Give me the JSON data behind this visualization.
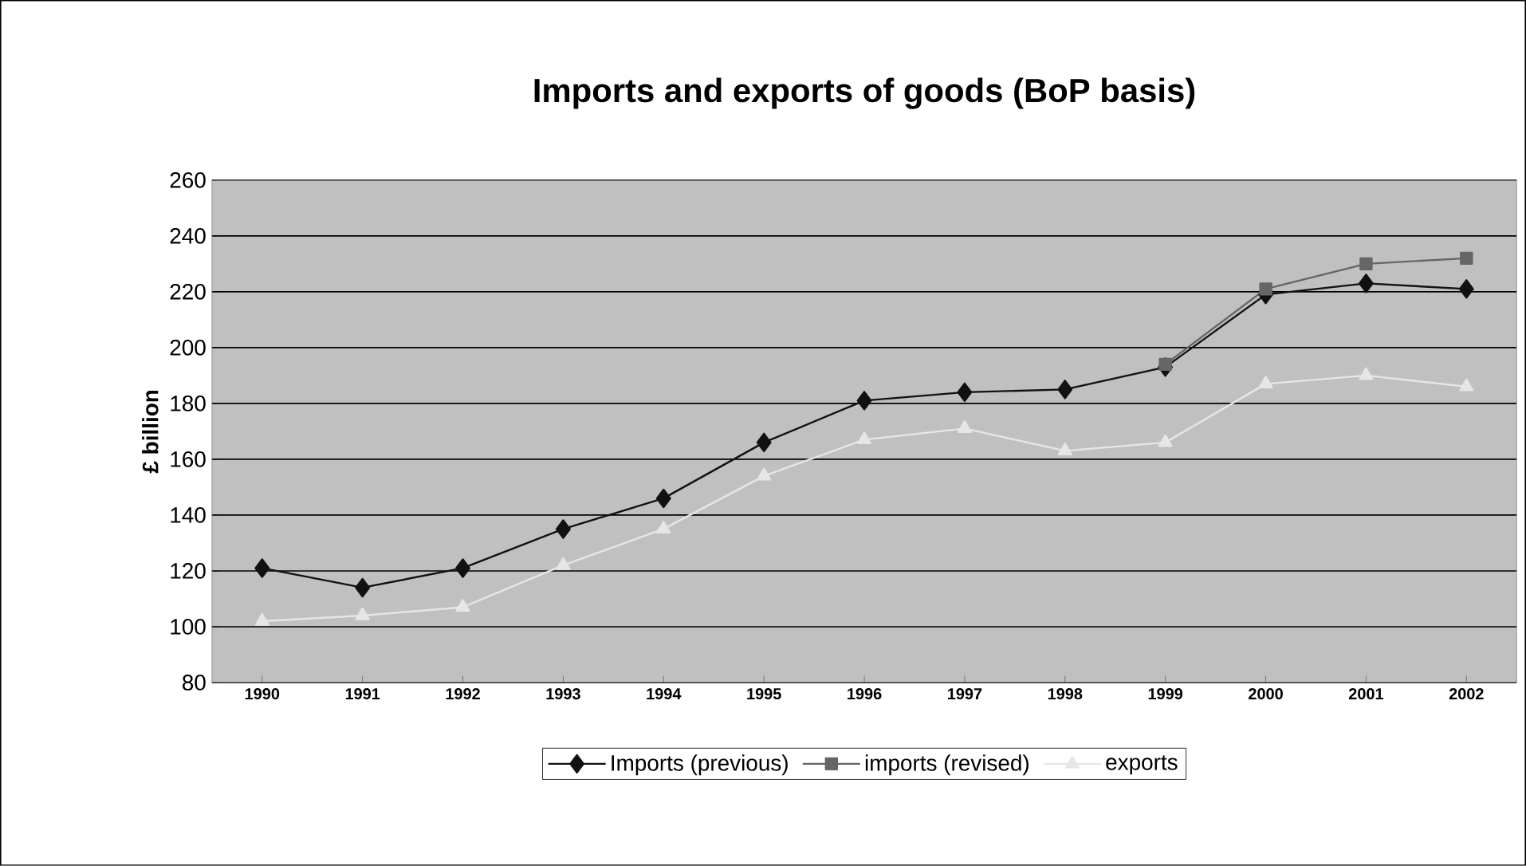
{
  "chart_data": {
    "type": "line",
    "title": "Imports and exports of goods (BoP basis)",
    "ylabel": "£ billion",
    "categories": [
      "1990",
      "1991",
      "1992",
      "1993",
      "1994",
      "1995",
      "1996",
      "1997",
      "1998",
      "1999",
      "2000",
      "2001",
      "2002"
    ],
    "series": [
      {
        "name": "Imports (previous)",
        "color": "#111111",
        "marker": "diamond",
        "values": [
          121,
          114,
          121,
          135,
          146,
          166,
          181,
          184,
          185,
          193,
          219,
          223,
          221
        ]
      },
      {
        "name": "imports (revised)",
        "color": "#666666",
        "marker": "square",
        "values": [
          null,
          null,
          null,
          null,
          null,
          null,
          null,
          null,
          null,
          194,
          221,
          230,
          232
        ]
      },
      {
        "name": "exports",
        "color": "#e6e6e6",
        "marker": "triangle",
        "values": [
          102,
          104,
          107,
          122,
          135,
          154,
          167,
          171,
          163,
          166,
          187,
          190,
          186
        ]
      }
    ],
    "ylim": [
      80,
      260
    ],
    "yticks": [
      80,
      100,
      120,
      140,
      160,
      180,
      200,
      220,
      240,
      260
    ],
    "grid": "y",
    "legend": "bottom"
  }
}
